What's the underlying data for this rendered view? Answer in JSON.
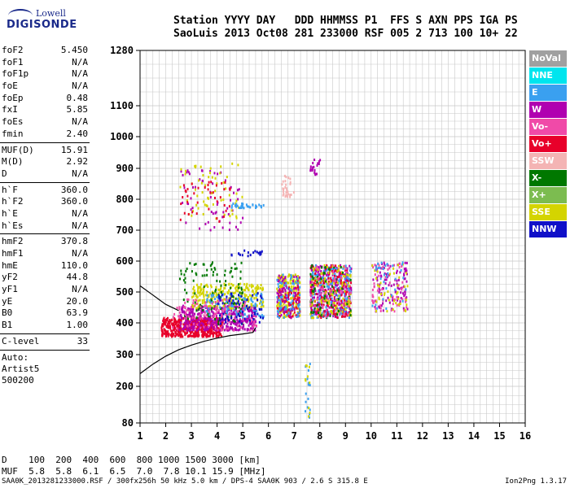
{
  "logo": {
    "line1": "Lowell",
    "line2": "DIGISONDE"
  },
  "header": {
    "line1": "Station YYYY DAY   DDD HHMMSS P1  FFS S AXN PPS IGA PS",
    "line2": "SaoLuis 2013 Oct08 281 233000 RSF 005 2 713 100 10+ 22"
  },
  "params": {
    "group1": [
      {
        "label": "foF2",
        "value": "5.450"
      },
      {
        "label": "foF1",
        "value": "N/A"
      },
      {
        "label": "foF1p",
        "value": "N/A"
      },
      {
        "label": "foE",
        "value": "N/A"
      },
      {
        "label": "foEp",
        "value": "0.48"
      },
      {
        "label": "fxI",
        "value": "5.85"
      },
      {
        "label": "foEs",
        "value": "N/A"
      },
      {
        "label": "fmin",
        "value": "2.40"
      }
    ],
    "group2": [
      {
        "label": "MUF(D)",
        "value": "15.91"
      },
      {
        "label": "M(D)",
        "value": "2.92"
      },
      {
        "label": "D",
        "value": "N/A"
      }
    ],
    "group3": [
      {
        "label": "h`F",
        "value": "360.0"
      },
      {
        "label": "h`F2",
        "value": "360.0"
      },
      {
        "label": "h`E",
        "value": "N/A"
      },
      {
        "label": "h`Es",
        "value": "N/A"
      }
    ],
    "group4": [
      {
        "label": "hmF2",
        "value": "370.8"
      },
      {
        "label": "hmF1",
        "value": "N/A"
      },
      {
        "label": "hmE",
        "value": "110.0"
      },
      {
        "label": "yF2",
        "value": "44.8"
      },
      {
        "label": "yF1",
        "value": "N/A"
      },
      {
        "label": "yE",
        "value": "20.0"
      },
      {
        "label": "B0",
        "value": "63.9"
      },
      {
        "label": "B1",
        "value": "1.00"
      }
    ],
    "clevel": {
      "label": "C-level",
      "value": "33"
    },
    "auto": [
      "Auto:",
      "Artist5",
      "500200"
    ]
  },
  "legend": [
    {
      "label": "NoVal",
      "color": "#a0a0a0"
    },
    {
      "label": "NNE",
      "color": "#00e5ee"
    },
    {
      "label": "E",
      "color": "#3aa0f0"
    },
    {
      "label": "W",
      "color": "#b000b0"
    },
    {
      "label": "Vo-",
      "color": "#f04aa8"
    },
    {
      "label": "Vo+",
      "color": "#e8002a"
    },
    {
      "label": "SSW",
      "color": "#f4b4b4"
    },
    {
      "label": "X-",
      "color": "#007800"
    },
    {
      "label": "X+",
      "color": "#7cbc50"
    },
    {
      "label": "SSE",
      "color": "#d4d400"
    },
    {
      "label": "NNW",
      "color": "#1010c8"
    }
  ],
  "chart_data": {
    "type": "scatter",
    "title": "",
    "xlabel": "",
    "ylabel": "",
    "xlim": [
      1,
      16
    ],
    "ylim": [
      80,
      1280
    ],
    "x_ticks": [
      1,
      2,
      3,
      4,
      5,
      6,
      7,
      8,
      9,
      10,
      11,
      12,
      13,
      14,
      15,
      16
    ],
    "y_ticks": [
      80,
      200,
      300,
      400,
      500,
      600,
      700,
      800,
      900,
      1000,
      1100,
      1280
    ],
    "y_scale": "nonlinear (ionogram virtual height)",
    "grid": true,
    "legend_position": "right",
    "clusters": [
      {
        "color": "#e8002a",
        "x": [
          1.8,
          4.2
        ],
        "y": [
          360,
          420
        ],
        "n": 500
      },
      {
        "color": "#b000b0",
        "x": [
          2.5,
          5.5
        ],
        "y": [
          380,
          460
        ],
        "n": 400
      },
      {
        "color": "#d4d400",
        "x": [
          3.0,
          5.8
        ],
        "y": [
          450,
          530
        ],
        "n": 250
      },
      {
        "color": "#007800",
        "x": [
          2.5,
          5.0
        ],
        "y": [
          400,
          600
        ],
        "n": 120
      },
      {
        "color": "#3aa0f0",
        "x": [
          3.5,
          5.8
        ],
        "y": [
          420,
          500
        ],
        "n": 100
      },
      {
        "color": "#f04aa8",
        "x": [
          2.2,
          5.5
        ],
        "y": [
          380,
          480
        ],
        "n": 120
      },
      {
        "color": "#1010c8",
        "x": [
          4.0,
          5.8
        ],
        "y": [
          400,
          500
        ],
        "n": 60
      },
      {
        "color": "#d4d400",
        "x": [
          6.3,
          7.2
        ],
        "y": [
          420,
          560
        ],
        "n": 200
      },
      {
        "color": "#e8002a",
        "x": [
          6.3,
          7.2
        ],
        "y": [
          420,
          520
        ],
        "n": 80
      },
      {
        "color": "#b000b0",
        "x": [
          6.3,
          7.2
        ],
        "y": [
          420,
          560
        ],
        "n": 80
      },
      {
        "color": "#3aa0f0",
        "x": [
          6.3,
          7.2
        ],
        "y": [
          420,
          560
        ],
        "n": 60
      },
      {
        "color": "#b000b0",
        "x": [
          7.6,
          9.2
        ],
        "y": [
          420,
          590
        ],
        "n": 300
      },
      {
        "color": "#3aa0f0",
        "x": [
          7.6,
          9.2
        ],
        "y": [
          420,
          590
        ],
        "n": 200
      },
      {
        "color": "#e8002a",
        "x": [
          7.6,
          9.2
        ],
        "y": [
          420,
          590
        ],
        "n": 150
      },
      {
        "color": "#d4d400",
        "x": [
          7.6,
          9.2
        ],
        "y": [
          420,
          590
        ],
        "n": 120
      },
      {
        "color": "#007800",
        "x": [
          7.6,
          9.2
        ],
        "y": [
          420,
          590
        ],
        "n": 60
      },
      {
        "color": "#f04aa8",
        "x": [
          7.6,
          9.2
        ],
        "y": [
          420,
          590
        ],
        "n": 60
      },
      {
        "color": "#b000b0",
        "x": [
          10.0,
          11.4
        ],
        "y": [
          440,
          600
        ],
        "n": 90
      },
      {
        "color": "#f04aa8",
        "x": [
          10.0,
          11.4
        ],
        "y": [
          440,
          600
        ],
        "n": 60
      },
      {
        "color": "#d4d400",
        "x": [
          10.0,
          11.4
        ],
        "y": [
          440,
          600
        ],
        "n": 40
      },
      {
        "color": "#3aa0f0",
        "x": [
          10.0,
          11.4
        ],
        "y": [
          440,
          600
        ],
        "n": 30
      },
      {
        "color": "#b000b0",
        "x": [
          2.5,
          5.0
        ],
        "y": [
          700,
          900
        ],
        "n": 60
      },
      {
        "color": "#d4d400",
        "x": [
          2.5,
          5.0
        ],
        "y": [
          740,
          920
        ],
        "n": 60
      },
      {
        "color": "#e8002a",
        "x": [
          2.5,
          4.5
        ],
        "y": [
          720,
          880
        ],
        "n": 40
      },
      {
        "color": "#3aa0f0",
        "x": [
          4.5,
          5.8
        ],
        "y": [
          775,
          790
        ],
        "n": 30
      },
      {
        "color": "#f4b4b4",
        "x": [
          6.5,
          7.0
        ],
        "y": [
          810,
          880
        ],
        "n": 30
      },
      {
        "color": "#b000b0",
        "x": [
          7.6,
          8.0
        ],
        "y": [
          880,
          940
        ],
        "n": 20
      },
      {
        "color": "#1010c8",
        "x": [
          4.5,
          5.8
        ],
        "y": [
          620,
          640
        ],
        "n": 20
      },
      {
        "color": "#3aa0f0",
        "x": [
          7.4,
          7.6
        ],
        "y": [
          100,
          280
        ],
        "n": 15
      },
      {
        "color": "#d4d400",
        "x": [
          7.4,
          7.6
        ],
        "y": [
          100,
          280
        ],
        "n": 10
      }
    ],
    "trace": {
      "color": "#000000",
      "x": [
        1.0,
        1.5,
        2.0,
        2.5,
        3.0,
        3.5,
        4.0,
        4.5,
        5.0,
        5.4,
        5.5
      ],
      "y": [
        240,
        270,
        295,
        315,
        330,
        342,
        352,
        360,
        365,
        370,
        385
      ]
    },
    "trace2": {
      "color": "#000000",
      "x": [
        1.0,
        1.5,
        2.0,
        2.5
      ],
      "y": [
        520,
        490,
        460,
        440
      ]
    }
  },
  "bottom": {
    "d_line": "D    100  200  400  600  800 1000 1500 3000 [km]",
    "muf_line": "MUF  5.8  5.8  6.1  6.5  7.0  7.8 10.1 15.9 [MHz]"
  },
  "footer": {
    "text": "SAA0K_2013281233000.RSF / 300fx256h 50 kHz 5.0 km / DPS-4 SAA0K 903 / 2.6 S 315.8 E",
    "version": "Ion2Png 1.3.17"
  }
}
